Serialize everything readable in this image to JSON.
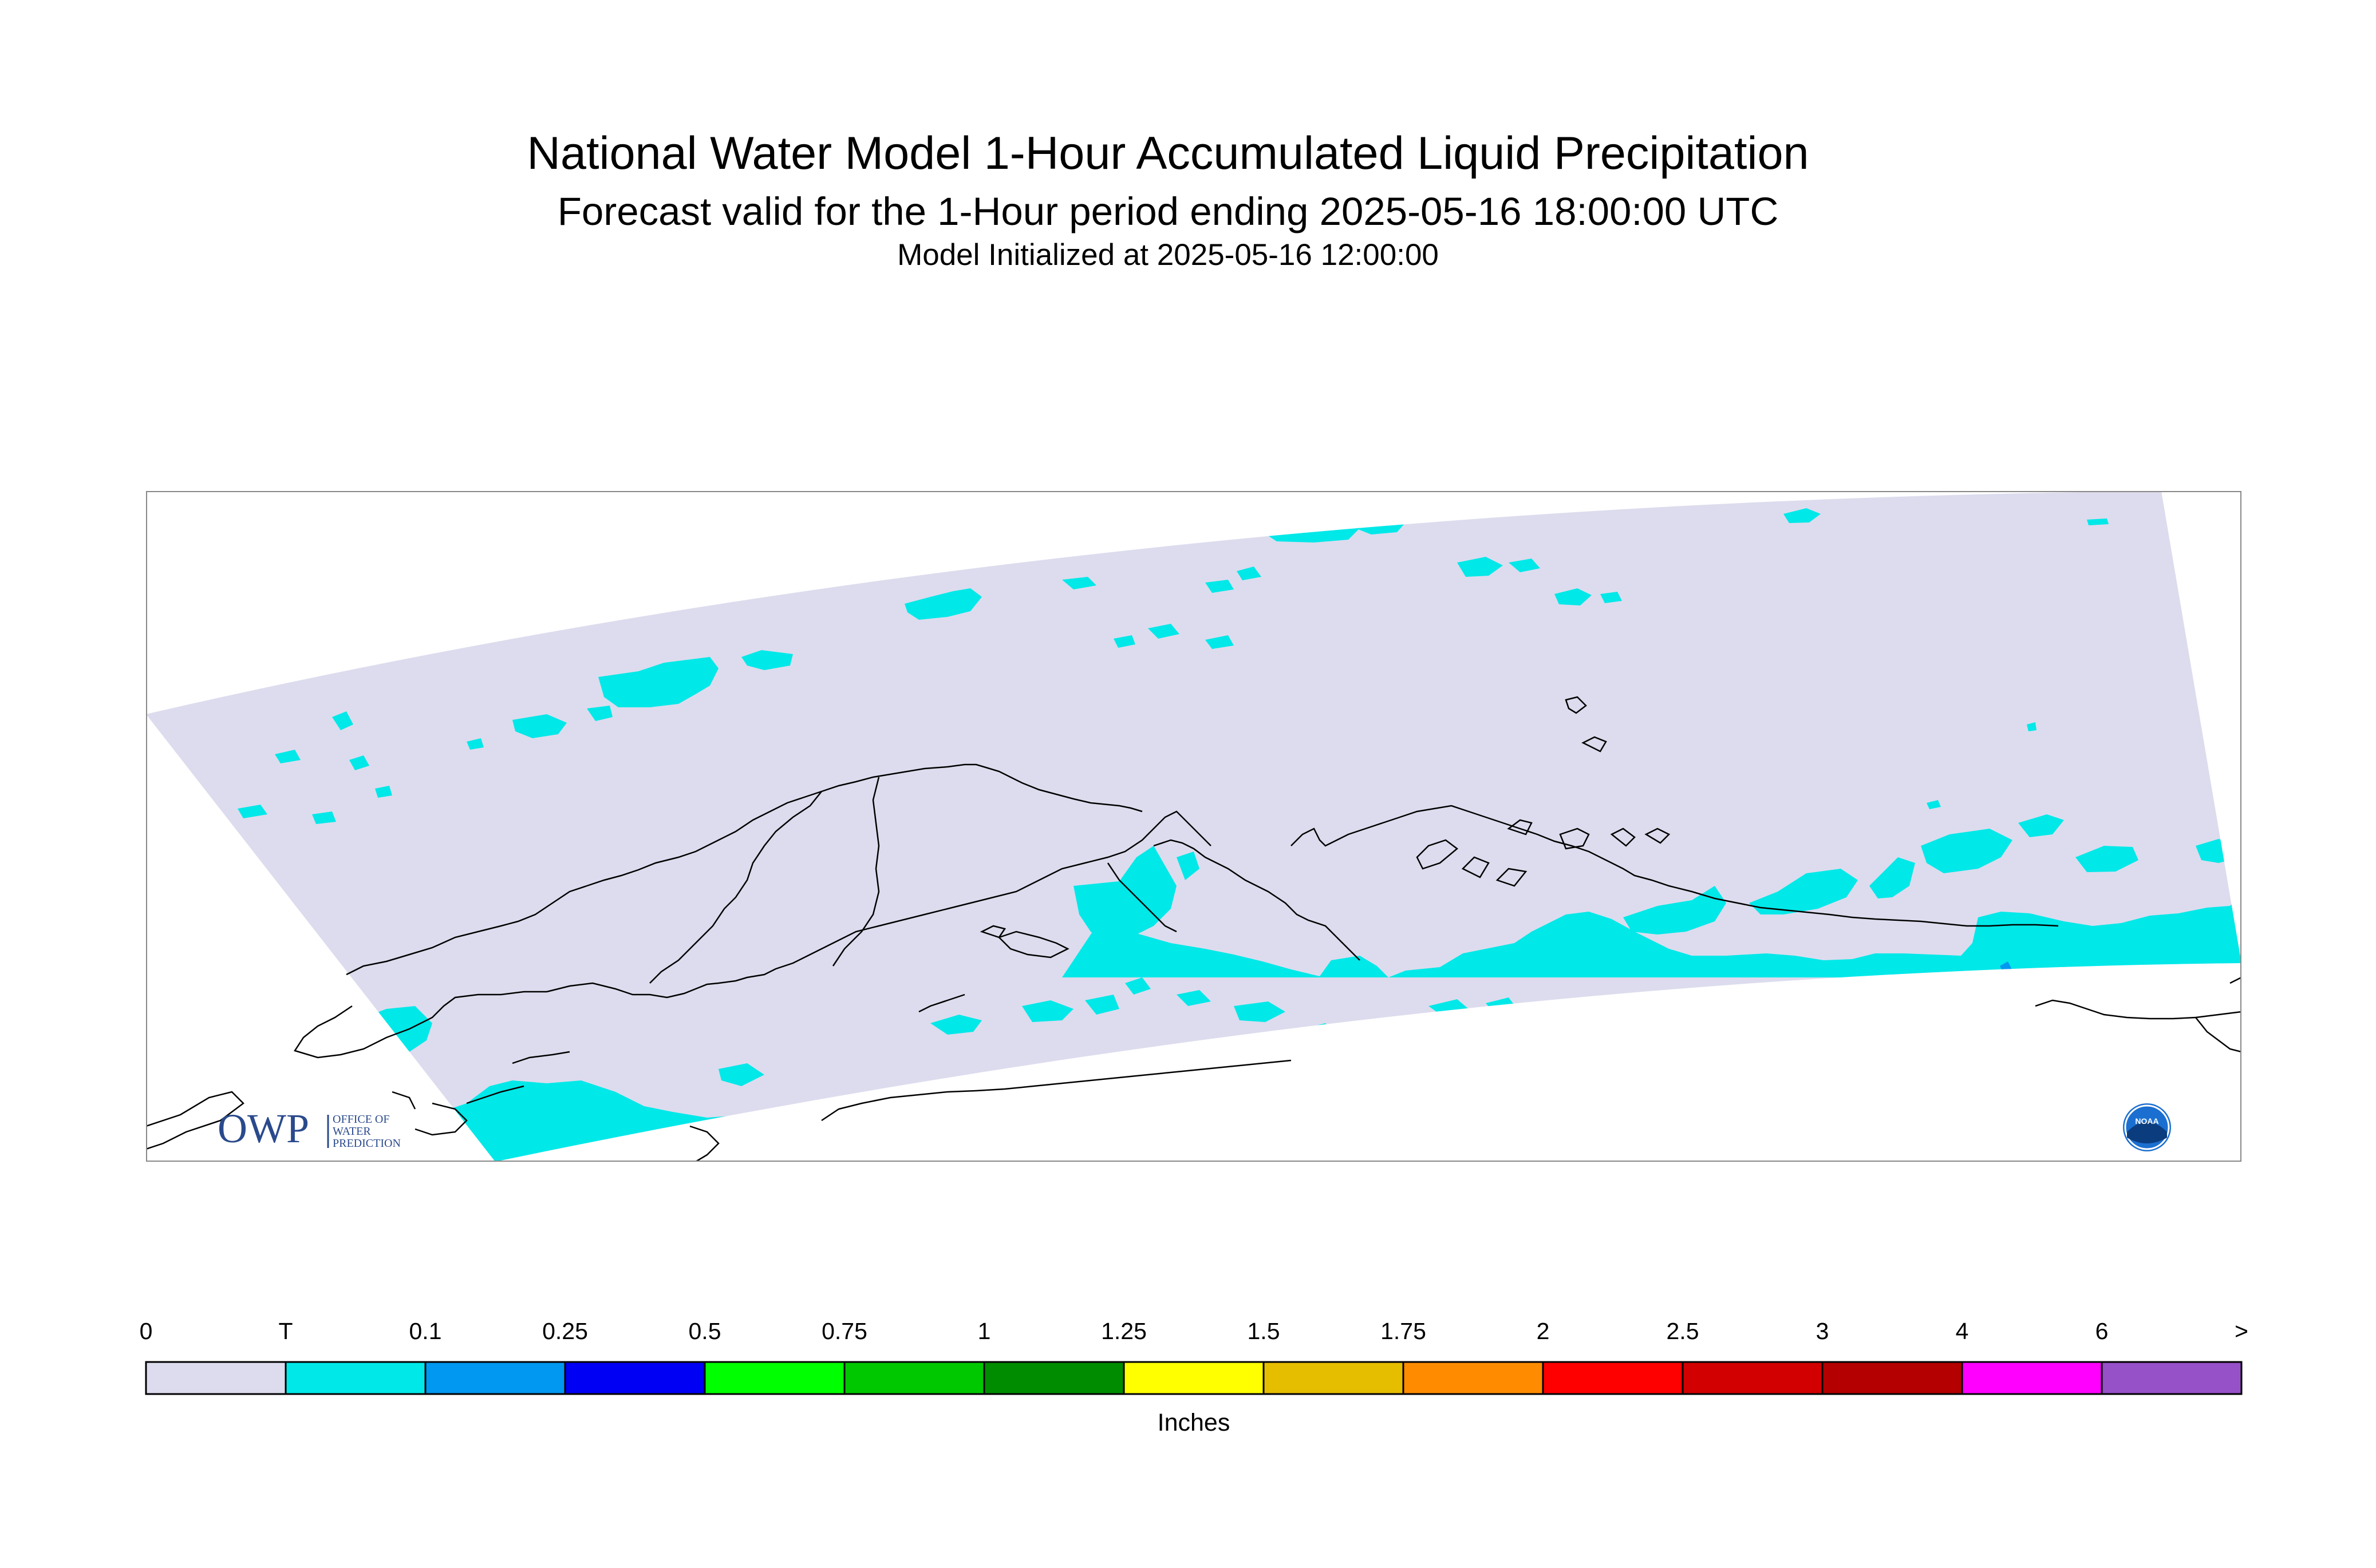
{
  "title": "National Water Model 1-Hour Accumulated Liquid Precipitation",
  "subtitle": "Forecast valid for the 1-Hour period ending 2025-05-16 18:00:00 UTC",
  "init_line": "Model Initialized at 2025-05-16 12:00:00",
  "logo_owp": {
    "letters": "OWP",
    "line1": "OFFICE OF",
    "line2": "WATER",
    "line3": "PREDICTION"
  },
  "logo_noaa": {
    "text": "NOAA"
  },
  "legend": {
    "units": "Inches",
    "labels": [
      "0",
      "T",
      "0.1",
      "0.25",
      "0.5",
      "0.75",
      "1",
      "1.25",
      "1.5",
      "1.75",
      "2",
      "2.5",
      "3",
      "4",
      "6",
      ">"
    ],
    "colors": [
      "#dcdcee",
      "#00e8e8",
      "#0098f0",
      "#0000f5",
      "#00ff00",
      "#00c800",
      "#008c00",
      "#ffff00",
      "#e6be00",
      "#ff8c00",
      "#ff0000",
      "#d20000",
      "#b40000",
      "#ff00ff",
      "#9650c8"
    ]
  },
  "colors": {
    "domain": "#dcdcee",
    "trace": "#00e8e8",
    "light": "#0098f0",
    "coast": "#000000"
  }
}
